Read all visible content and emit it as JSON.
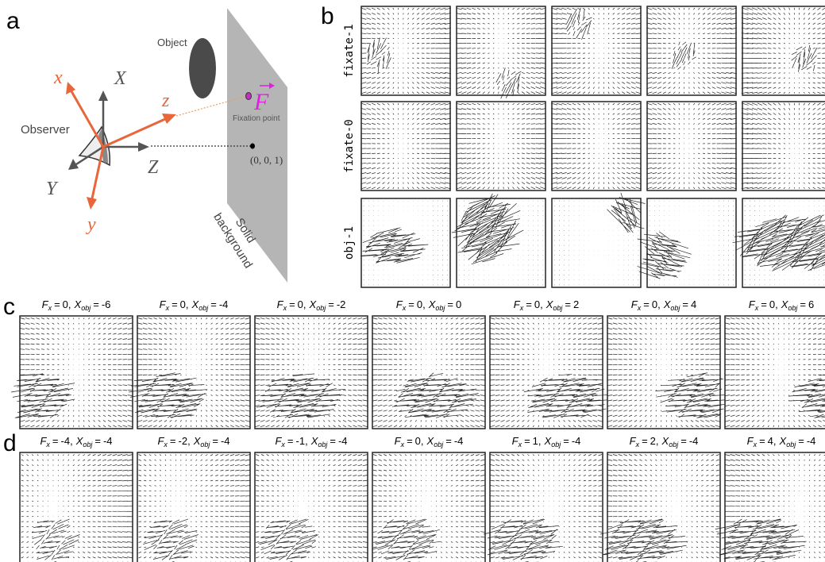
{
  "panel_labels": {
    "a": "a",
    "b": "b",
    "c": "c",
    "d": "d"
  },
  "diagram": {
    "object": "Object",
    "observer": "Observer",
    "axes": {
      "x": "x",
      "X": "X",
      "z": "z",
      "Z": "Z",
      "y": "y",
      "Y": "Y"
    },
    "fixation_symbol": "F",
    "fixation_label": "Fixation point",
    "origin_label": "(0, 0, 1)",
    "background_label": [
      "Solid",
      "background"
    ]
  },
  "grid_b": {
    "rows": [
      "fixate-1",
      "fixate-0",
      "obj-1"
    ]
  },
  "title_parts": {
    "f": "F",
    "f_sub": "x",
    "eq": "=",
    "sep": ",",
    "x": "X",
    "x_sub": "obj"
  },
  "grid_c": [
    {
      "fx": "0",
      "xobj": "-6"
    },
    {
      "fx": "0",
      "xobj": "-4"
    },
    {
      "fx": "0",
      "xobj": "-2"
    },
    {
      "fx": "0",
      "xobj": "0"
    },
    {
      "fx": "0",
      "xobj": "2"
    },
    {
      "fx": "0",
      "xobj": "4"
    },
    {
      "fx": "0",
      "xobj": "6"
    }
  ],
  "grid_d": [
    {
      "fx": "-4",
      "xobj": "-4"
    },
    {
      "fx": "-2",
      "xobj": "-4"
    },
    {
      "fx": "-1",
      "xobj": "-4"
    },
    {
      "fx": "0",
      "xobj": "-4"
    },
    {
      "fx": "1",
      "xobj": "-4"
    },
    {
      "fx": "2",
      "xobj": "-4"
    },
    {
      "fx": "4",
      "xobj": "-4"
    }
  ]
}
